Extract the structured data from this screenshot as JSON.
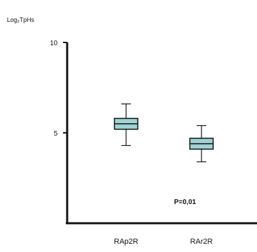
{
  "chart_data": {
    "type": "box",
    "ylabel": "Log₂TpHs",
    "ylim": [
      0,
      10
    ],
    "yticks": [
      {
        "value": 10,
        "label": "10"
      },
      {
        "value": 5,
        "label": "5"
      }
    ],
    "categories": [
      "RAp2R",
      "RAr2R"
    ],
    "boxes": [
      {
        "category": "RAp2R",
        "whisker_low": 4.3,
        "q1": 5.2,
        "median": 5.5,
        "q3": 5.8,
        "whisker_high": 6.6
      },
      {
        "category": "RAr2R",
        "whisker_low": 3.4,
        "q1": 4.1,
        "median": 4.4,
        "q3": 4.7,
        "whisker_high": 5.4
      }
    ],
    "annotation": "P=0,01",
    "box_fill": "#9fd3d3",
    "line_color": "#111111"
  }
}
